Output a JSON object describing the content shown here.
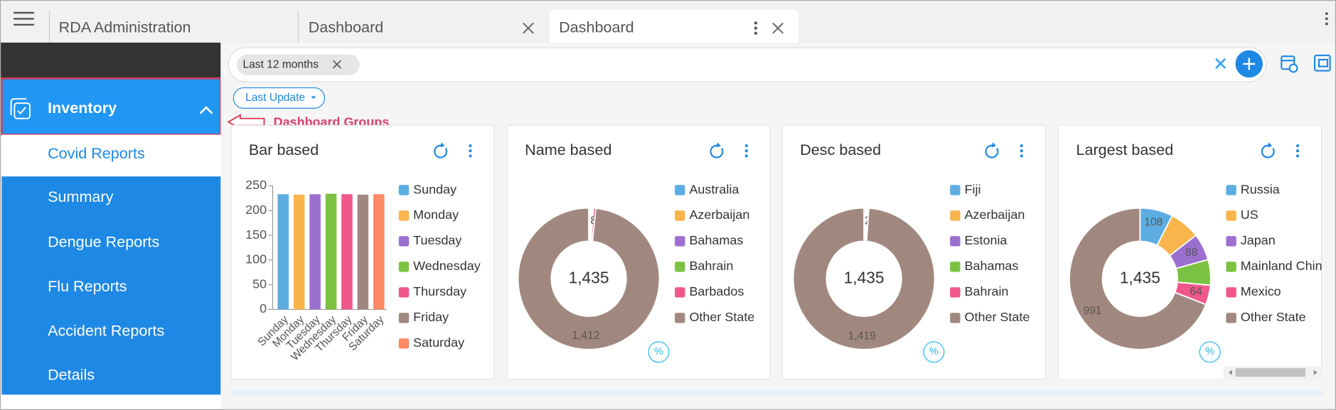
{
  "tabs": [
    "RDA Administration",
    "Dashboard",
    "Dashboard"
  ],
  "sidebar": {
    "group": "Inventory",
    "items": [
      "Covid Reports",
      "Summary",
      "Dengue Reports",
      "Flu Reports",
      "Accident Reports",
      "Details"
    ]
  },
  "filters": {
    "period": "Last 12 months",
    "sort": "Last Update"
  },
  "annotation": "Dashboard Groups",
  "widgets": [
    {
      "title": "Bar based",
      "type": "bar",
      "categories": [
        "Sunday",
        "Monday",
        "Tuesday",
        "Wednesday",
        "Thursday",
        "Friday",
        "Saturday"
      ],
      "colors": [
        "#5dade2",
        "#f9b44c",
        "#9b6fcf",
        "#7cc242",
        "#f0578a",
        "#a1887f",
        "#ff8a65"
      ],
      "values": [
        233,
        232,
        233,
        234,
        233,
        232,
        233
      ],
      "ylim": [
        0,
        250
      ],
      "yticks": [
        0,
        50,
        100,
        150,
        200,
        250
      ]
    },
    {
      "title": "Name based",
      "type": "donut",
      "categories": [
        "Australia",
        "Azerbaijan",
        "Bahamas",
        "Bahrain",
        "Barbados",
        "Other State"
      ],
      "colors": [
        "#5dade2",
        "#f9b44c",
        "#9b6fcf",
        "#7cc242",
        "#f0578a",
        "#a1887f"
      ],
      "values": [
        4,
        4,
        4,
        3,
        8,
        1412
      ],
      "value_labels": [
        null,
        null,
        null,
        null,
        "8",
        "1,412"
      ],
      "total": {
        "value": 1435,
        "label": "1,435"
      },
      "percent_label": "%"
    },
    {
      "title": "Desc based",
      "type": "donut",
      "categories": [
        "Fiji",
        "Azerbaijan",
        "Estonia",
        "Bahamas",
        "Bahrain",
        "Other State"
      ],
      "colors": [
        "#5dade2",
        "#f9b44c",
        "#9b6fcf",
        "#7cc242",
        "#f0578a",
        "#a1887f"
      ],
      "values": [
        5,
        4,
        3,
        2,
        2,
        1419
      ],
      "value_labels": [
        null,
        null,
        null,
        null,
        "2",
        "1,419"
      ],
      "total": {
        "value": 1435,
        "label": "1,435"
      },
      "percent_label": "%"
    },
    {
      "title": "Largest based",
      "type": "donut",
      "categories": [
        "Russia",
        "US",
        "Japan",
        "Mainland China",
        "Mexico",
        "Other State"
      ],
      "colors": [
        "#5dade2",
        "#f9b44c",
        "#9b6fcf",
        "#7cc242",
        "#f0578a",
        "#a1887f"
      ],
      "values": [
        108,
        100,
        88,
        84,
        64,
        991
      ],
      "value_labels": [
        "108",
        null,
        "88",
        null,
        "64",
        "991"
      ],
      "total": {
        "value": 1435,
        "label": "1,435"
      },
      "percent_label": "%"
    }
  ]
}
